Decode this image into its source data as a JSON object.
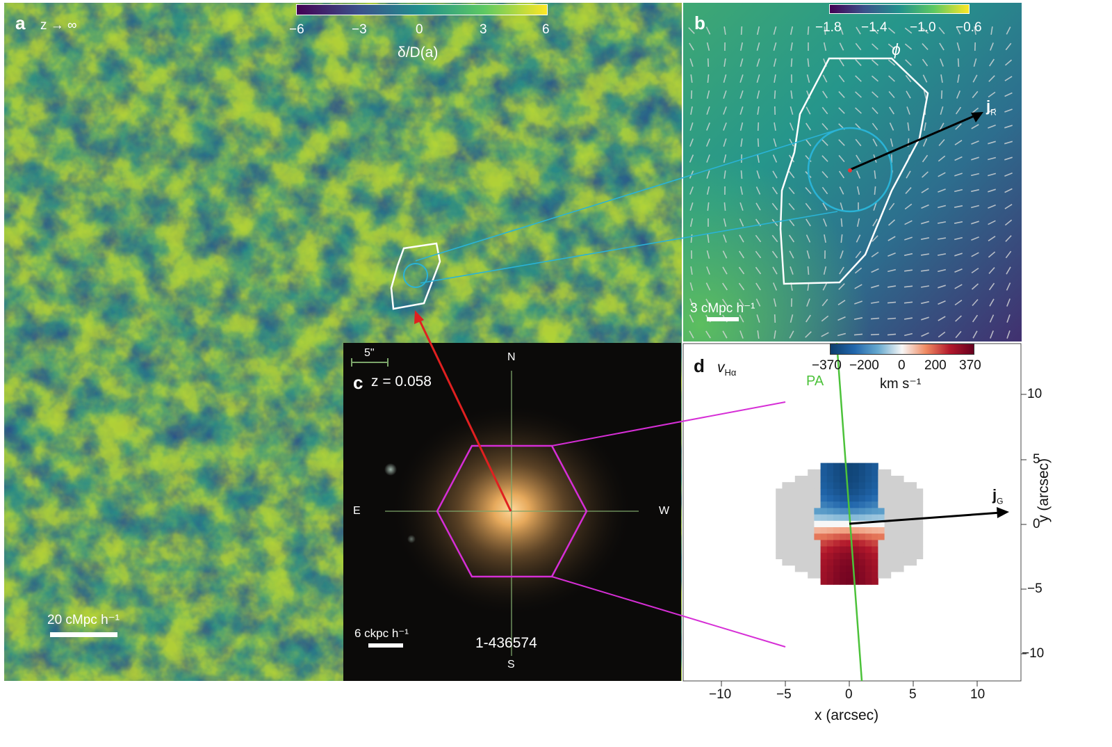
{
  "panel_a": {
    "letter": "a",
    "redshift": "z → ∞",
    "colorbar_ticks": [
      "−6",
      "−3",
      "0",
      "3",
      "6"
    ],
    "colorbar_label": "δ/D(a)",
    "scale": "20 cMpc h⁻¹",
    "colormap": [
      "#440154",
      "#3b528b",
      "#21918c",
      "#5ec962",
      "#fde725"
    ]
  },
  "panel_b": {
    "letter": "b",
    "colorbar_ticks": [
      "−1.8",
      "−1.4",
      "−1.0",
      "−0.6"
    ],
    "contour_label": "ϕ",
    "vector_label_main": "j",
    "vector_label_sub": "R",
    "scale": "3 cMpc h⁻¹"
  },
  "panel_c": {
    "letter": "c",
    "redshift": "z = 0.058",
    "angular_scale": "5\"",
    "compass": {
      "north": "N",
      "south": "S",
      "east": "E",
      "west": "W"
    },
    "scale": "6 ckpc h⁻¹",
    "object_id": "1-436574"
  },
  "panel_d": {
    "letter": "d",
    "quantity_main": "v",
    "quantity_sub": "Hα",
    "colorbar_ticks": [
      "−370",
      "−200",
      "0",
      "200",
      "370"
    ],
    "colorbar_unit": "km s⁻¹",
    "pa_label": "PA",
    "vector_label_main": "j",
    "vector_label_sub": "G",
    "xlabel": "x (arcsec)",
    "ylabel": "y (arcsec)",
    "x_ticks": [
      "−10",
      "−5",
      "0",
      "5",
      "10"
    ],
    "y_ticks": [
      "10",
      "5",
      "0",
      "−5",
      "−10"
    ],
    "colormap": [
      "#2166ac",
      "#67a9cf",
      "#f7f7f7",
      "#ef8a62",
      "#b2182b"
    ]
  }
}
